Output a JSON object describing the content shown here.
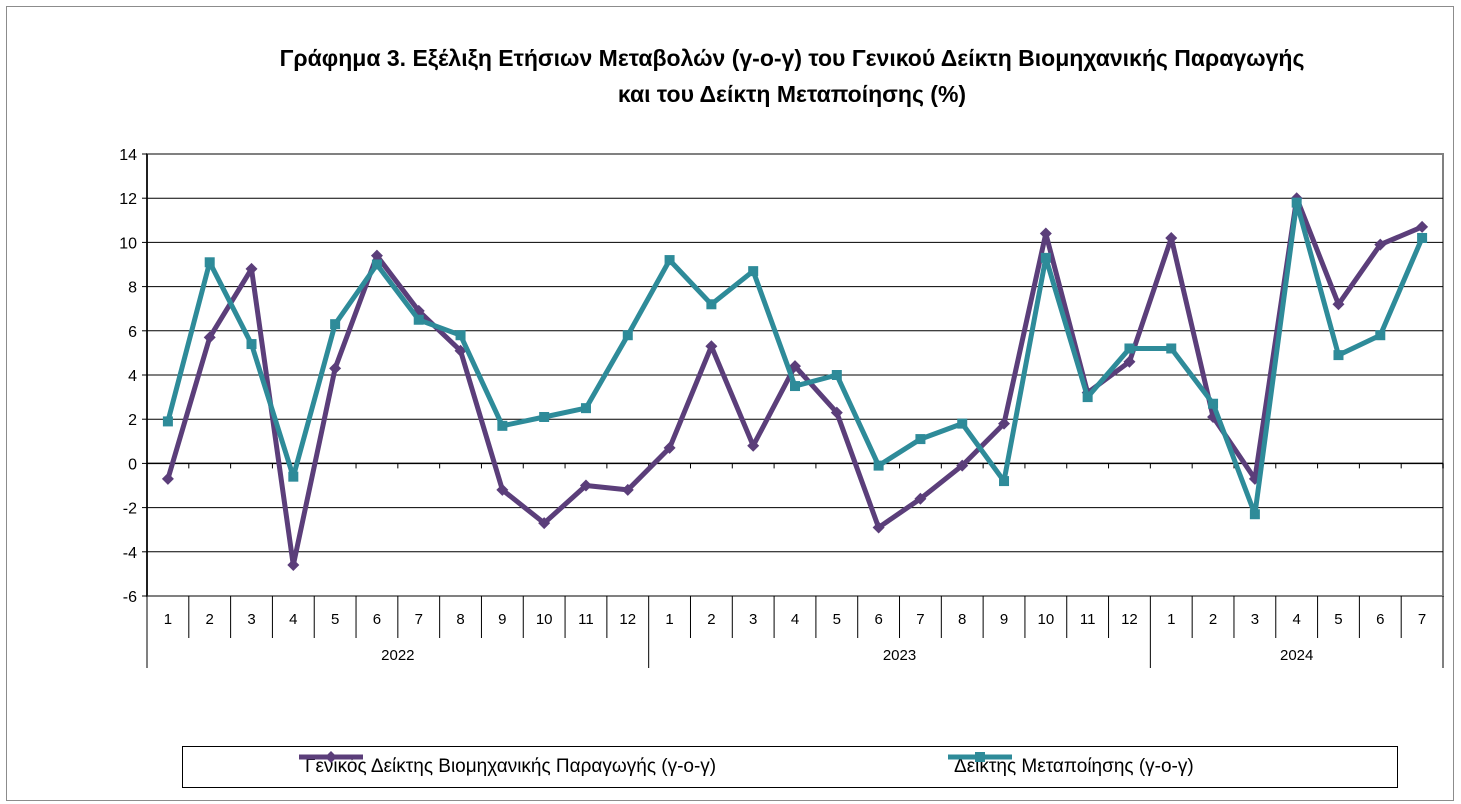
{
  "chart_data": {
    "type": "line",
    "title": "Γράφημα 3. Εξέλιξη Ετήσιων Μεταβολών (γ-ο-γ) του Γενικού Δείκτη Βιομηχανικής Παραγωγής και του Δείκτη Μεταποίησης (%)",
    "title_lines": [
      "Γράφημα 3. Εξέλιξη Ετήσιων Μεταβολών (γ-ο-γ) του Γενικού Δείκτη Βιομηχανικής Παραγωγής",
      "και του Δείκτη Μεταποίησης (%)"
    ],
    "xlabel": "",
    "ylabel": "",
    "ylim": [
      -6,
      14
    ],
    "yticks": [
      -6,
      -4,
      -2,
      0,
      2,
      4,
      6,
      8,
      10,
      12,
      14
    ],
    "grid": true,
    "legend_position": "bottom",
    "months": [
      "1",
      "2",
      "3",
      "4",
      "5",
      "6",
      "7",
      "8",
      "9",
      "10",
      "11",
      "12",
      "1",
      "2",
      "3",
      "4",
      "5",
      "6",
      "7",
      "8",
      "9",
      "10",
      "11",
      "12",
      "1",
      "2",
      "3",
      "4",
      "5",
      "6",
      "7"
    ],
    "year_groups": [
      {
        "label": "2022",
        "count": 12
      },
      {
        "label": "2023",
        "count": 12
      },
      {
        "label": "2024",
        "count": 7
      }
    ],
    "series": [
      {
        "name": "Γενικός Δείκτης Βιομηχανικής Παραγωγής (γ-ο-γ)",
        "color": "#5b3e7a",
        "marker": "diamond",
        "values": [
          -0.7,
          5.7,
          8.8,
          -4.6,
          4.3,
          9.4,
          6.9,
          5.1,
          -1.2,
          -2.7,
          -1.0,
          -1.2,
          0.7,
          5.3,
          0.8,
          4.4,
          2.3,
          -2.9,
          -1.6,
          -0.1,
          1.8,
          10.4,
          3.2,
          4.6,
          10.2,
          2.1,
          -0.7,
          12.0,
          7.2,
          9.9,
          10.7
        ]
      },
      {
        "name": "Δείκτης Μεταποίησης (γ-ο-γ)",
        "color": "#2e8b99",
        "marker": "square",
        "values": [
          1.9,
          9.1,
          5.4,
          -0.6,
          6.3,
          9.0,
          6.5,
          5.8,
          1.7,
          2.1,
          2.5,
          5.8,
          9.2,
          7.2,
          8.7,
          3.5,
          4.0,
          -0.1,
          1.1,
          1.8,
          -0.8,
          9.3,
          3.0,
          5.2,
          5.2,
          2.7,
          -2.3,
          11.8,
          4.9,
          5.8,
          10.2
        ]
      }
    ]
  }
}
